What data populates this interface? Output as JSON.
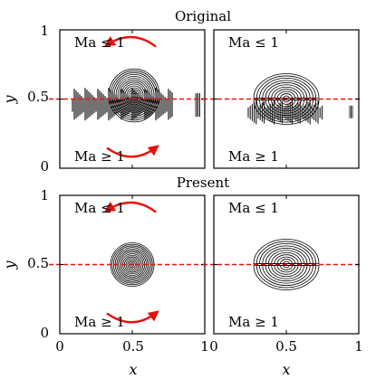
{
  "chart_data": [
    {
      "type": "contour",
      "row_title": "Original",
      "panel": "top-left",
      "xlim": [
        0,
        1
      ],
      "ylim": [
        0,
        1
      ],
      "ylabel": "y",
      "yticks": [
        "0",
        "0.5",
        "1"
      ],
      "text_upper": "Ma ≤ 1",
      "text_lower": "Ma ≥ 1",
      "dashed_line_y": 0.5,
      "arrows": [
        "counterclockwise-top",
        "clockwise-bottom"
      ],
      "vortex_center": [
        0.5,
        0.5
      ]
    },
    {
      "type": "contour",
      "panel": "top-right",
      "xlim": [
        0,
        1
      ],
      "ylim": [
        0,
        1
      ],
      "text_upper": "Ma ≤ 1",
      "text_lower": "Ma ≥ 1",
      "dashed_line_y": 0.5,
      "lobe_centers": [
        [
          0.5,
          0.6
        ],
        [
          0.5,
          0.4
        ]
      ]
    },
    {
      "type": "contour",
      "row_title": "Present",
      "panel": "bottom-left",
      "xlim": [
        0,
        1
      ],
      "ylim": [
        0,
        1
      ],
      "xlabel": "x",
      "ylabel": "y",
      "xticks": [
        "0",
        "0.5",
        "1"
      ],
      "yticks": [
        "0",
        "0.5",
        "1"
      ],
      "text_upper": "Ma ≤ 1",
      "text_lower": "Ma ≥ 1",
      "dashed_line_y": 0.5,
      "arrows": [
        "counterclockwise-top",
        "clockwise-bottom"
      ],
      "vortex_center": [
        0.5,
        0.5
      ]
    },
    {
      "type": "contour",
      "panel": "bottom-right",
      "xlim": [
        0,
        1
      ],
      "ylim": [
        0,
        1
      ],
      "xlabel": "x",
      "xticks": [
        "0",
        "0.5",
        "1"
      ],
      "text_upper": "Ma ≤ 1",
      "text_lower": "Ma ≥ 1",
      "dashed_line_y": 0.5,
      "lobe_centers": [
        [
          0.5,
          0.6
        ],
        [
          0.5,
          0.4
        ]
      ]
    }
  ],
  "colors": {
    "dashed": "#e8120c",
    "arrow": "#e8120c",
    "contour": "#000000"
  }
}
